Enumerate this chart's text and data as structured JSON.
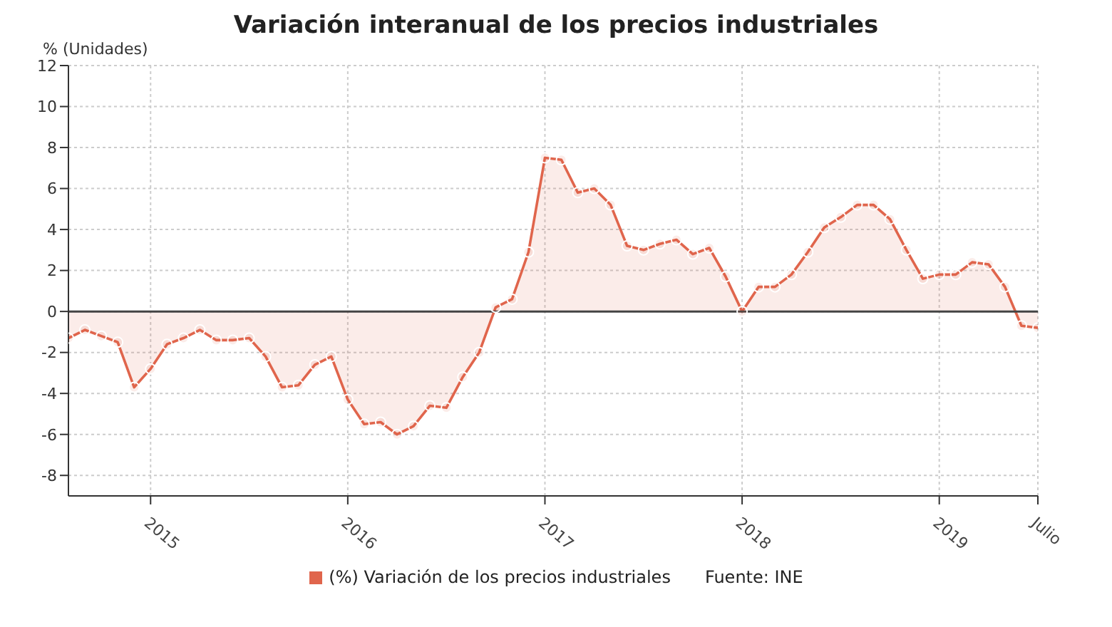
{
  "chart_data": {
    "type": "area",
    "title": "Variación interanual de los precios industriales",
    "ylabel": "% (Unidades)",
    "annotations": [
      "Fuente: INE"
    ],
    "x": [
      "2014-08",
      "2014-09",
      "2014-10",
      "2014-11",
      "2014-12",
      "2015-01",
      "2015-02",
      "2015-03",
      "2015-04",
      "2015-05",
      "2015-06",
      "2015-07",
      "2015-08",
      "2015-09",
      "2015-10",
      "2015-11",
      "2015-12",
      "2016-01",
      "2016-02",
      "2016-03",
      "2016-04",
      "2016-05",
      "2016-06",
      "2016-07",
      "2016-08",
      "2016-09",
      "2016-10",
      "2016-11",
      "2016-12",
      "2017-01",
      "2017-02",
      "2017-03",
      "2017-04",
      "2017-05",
      "2017-06",
      "2017-07",
      "2017-08",
      "2017-09",
      "2017-10",
      "2017-11",
      "2017-12",
      "2018-01",
      "2018-02",
      "2018-03",
      "2018-04",
      "2018-05",
      "2018-06",
      "2018-07",
      "2018-08",
      "2018-09",
      "2018-10",
      "2018-11",
      "2018-12",
      "2019-01",
      "2019-02",
      "2019-03",
      "2019-04",
      "2019-05",
      "2019-06",
      "2019-07"
    ],
    "series": [
      {
        "name": "(%) Variación de los precios industriales",
        "color": "#e0654c",
        "values": [
          -1.3,
          -0.9,
          -1.2,
          -1.5,
          -3.7,
          -2.8,
          -1.6,
          -1.3,
          -0.9,
          -1.4,
          -1.4,
          -1.3,
          -2.2,
          -3.7,
          -3.6,
          -2.6,
          -2.2,
          -4.3,
          -5.5,
          -5.4,
          -6.0,
          -5.6,
          -4.6,
          -4.7,
          -3.2,
          -2.0,
          0.2,
          0.6,
          2.9,
          7.5,
          7.4,
          5.8,
          6.0,
          5.2,
          3.2,
          3.0,
          3.3,
          3.5,
          2.8,
          3.1,
          1.7,
          0.0,
          1.2,
          1.2,
          1.8,
          2.9,
          4.1,
          4.6,
          5.2,
          5.2,
          4.5,
          3.0,
          1.6,
          1.8,
          1.8,
          2.4,
          2.3,
          1.2,
          -0.7,
          -0.8
        ]
      }
    ],
    "xlim": [
      "2014-08",
      "2019-07"
    ],
    "xticks": [
      {
        "value": "2015-01",
        "label": "2015"
      },
      {
        "value": "2016-01",
        "label": "2016"
      },
      {
        "value": "2017-01",
        "label": "2017"
      },
      {
        "value": "2018-01",
        "label": "2018"
      },
      {
        "value": "2019-01",
        "label": "2019"
      },
      {
        "value": "2019-07",
        "label": "Julio"
      }
    ],
    "ylim": [
      -9,
      12
    ],
    "yticks": [
      -8,
      -6,
      -4,
      -2,
      0,
      2,
      4,
      6,
      8,
      10,
      12
    ],
    "ref_lines": [
      {
        "axis": "y",
        "value": 0,
        "color": "#444444"
      }
    ],
    "grid": true,
    "legend": "bottom",
    "marker": "circle",
    "line_style": "solid"
  }
}
